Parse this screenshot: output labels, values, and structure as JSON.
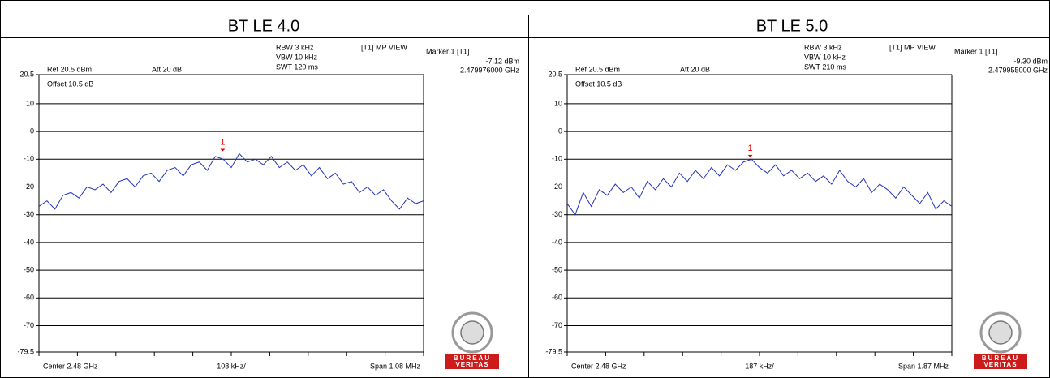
{
  "chart_data": [
    {
      "type": "line",
      "title": "BT LE 4.0",
      "color": "#2233bb",
      "ref": "Ref 20.5 dBm",
      "att": "Att 20 dB",
      "rbw": "RBW 3 kHz",
      "vbw": "VBW 10 kHz",
      "swt": "SWT 120 ms",
      "view": "[T1] MP VIEW",
      "marker_title": "Marker 1 [T1]",
      "marker_level": "-7.12 dBm",
      "marker_freq": "2.479976000 GHz",
      "offset": "Offset 10.5 dB",
      "center": "Center 2.48 GHz",
      "per_div": "108 kHz/",
      "span": "Span 1.08 MHz",
      "marker": {
        "label": "1",
        "x": 2.479976,
        "value": -7.12
      },
      "xlim": [
        2.47946,
        2.48054
      ],
      "ylim": [
        -79.5,
        20.5
      ],
      "yticks": [
        20.5,
        10,
        0,
        -10,
        -20,
        -30,
        -40,
        -50,
        -60,
        -70,
        -79.5
      ],
      "grid": true,
      "values": [
        -27,
        -25,
        -28,
        -23,
        -22,
        -24,
        -20,
        -21,
        -19,
        -22,
        -18,
        -17,
        -20,
        -16,
        -15,
        -18,
        -14,
        -13,
        -16,
        -12,
        -11,
        -14,
        -9,
        -10,
        -13,
        -8,
        -11,
        -10,
        -12,
        -9,
        -13,
        -11,
        -14,
        -12,
        -16,
        -13,
        -17,
        -15,
        -19,
        -18,
        -22,
        -20,
        -23,
        -21,
        -25,
        -28,
        -24,
        -26,
        -25
      ]
    },
    {
      "type": "line",
      "title": "BT LE 5.0",
      "color": "#2233bb",
      "ref": "Ref 20.5 dBm",
      "att": "Att 20 dB",
      "rbw": "RBW 3 kHz",
      "vbw": "VBW 10 kHz",
      "swt": "SWT 210 ms",
      "view": "[T1] MP VIEW",
      "marker_title": "Marker 1 [T1]",
      "marker_level": "-9.30 dBm",
      "marker_freq": "2.479955000 GHz",
      "offset": "Offset 10.5 dB",
      "center": "Center 2.48 GHz",
      "per_div": "187 kHz/",
      "span": "Span 1.87 MHz",
      "marker": {
        "label": "1",
        "x": 2.479955,
        "value": -9.3
      },
      "xlim": [
        2.479065,
        2.480935
      ],
      "ylim": [
        -79.5,
        20.5
      ],
      "yticks": [
        20.5,
        10,
        0,
        -10,
        -20,
        -30,
        -40,
        -50,
        -60,
        -70,
        -79.5
      ],
      "grid": true,
      "values": [
        -26,
        -30,
        -22,
        -27,
        -21,
        -23,
        -19,
        -22,
        -20,
        -24,
        -18,
        -21,
        -17,
        -20,
        -15,
        -18,
        -14,
        -17,
        -13,
        -16,
        -12,
        -14,
        -11,
        -10,
        -13,
        -15,
        -12,
        -16,
        -14,
        -17,
        -15,
        -18,
        -16,
        -19,
        -14,
        -18,
        -20,
        -17,
        -22,
        -19,
        -21,
        -24,
        -20,
        -23,
        -26,
        -22,
        -28,
        -25,
        -27
      ]
    }
  ],
  "logo": {
    "top": "BUREAU",
    "bottom": "VERITAS"
  }
}
